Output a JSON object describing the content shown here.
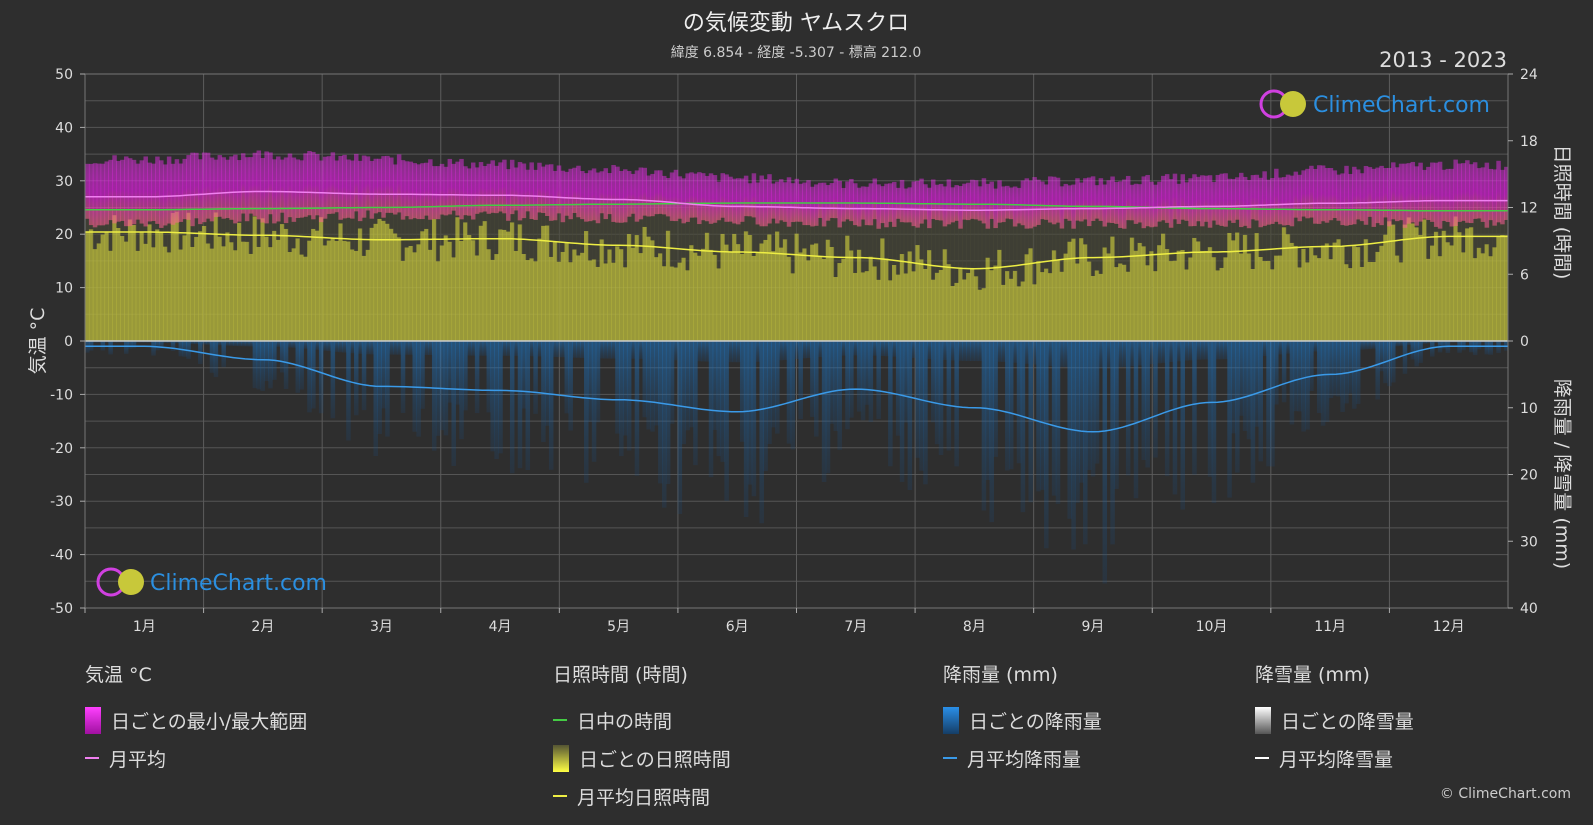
{
  "header": {
    "title": "の気候変動 ヤムスクロ",
    "subtitle": "緯度 6.854 - 経度 -5.307 - 標高 212.0",
    "period": "2013 - 2023"
  },
  "branding": {
    "logo_text": "ClimeChart.com",
    "copyright": "© ClimeChart.com"
  },
  "chart_data": {
    "type": "area",
    "x": [
      "1月",
      "2月",
      "3月",
      "4月",
      "5月",
      "6月",
      "7月",
      "8月",
      "9月",
      "10月",
      "11月",
      "12月"
    ],
    "left_axis": {
      "label": "気温 °C",
      "ylim": [
        -50,
        50
      ],
      "ticks": [
        "50",
        "40",
        "30",
        "20",
        "10",
        "0",
        "-10",
        "-20",
        "-30",
        "-40",
        "-50"
      ]
    },
    "right_axis_top": {
      "label": "日照時間 (時間)",
      "ylim": [
        0,
        24
      ],
      "ticks": [
        "24",
        "18",
        "12",
        "6",
        "0"
      ]
    },
    "right_axis_bottom": {
      "label": "降雨量 / 降雪量 (mm)",
      "ylim": [
        0,
        40
      ],
      "ticks": [
        "0",
        "10",
        "20",
        "30",
        "40"
      ]
    },
    "series": [
      {
        "name": "日ごとの最小/最大範囲",
        "kind": "band",
        "color": "#e020e0",
        "min": [
          22,
          23,
          23.5,
          23.5,
          23,
          22.5,
          22,
          22,
          22,
          22,
          22.5,
          22
        ],
        "max": [
          34,
          35,
          34,
          33,
          32,
          30.5,
          29.5,
          29.5,
          30,
          30.5,
          32,
          33
        ]
      },
      {
        "name": "月平均",
        "kind": "line",
        "color": "#f080f0",
        "values": [
          27,
          28,
          27.5,
          27.3,
          26.5,
          25.2,
          24.8,
          24.5,
          24.8,
          25.2,
          25.8,
          26.3
        ]
      },
      {
        "name": "日中の時間",
        "kind": "line",
        "color": "#44cc44",
        "values": [
          11.8,
          11.9,
          12.0,
          12.2,
          12.3,
          12.4,
          12.4,
          12.3,
          12.1,
          11.9,
          11.8,
          11.7
        ]
      },
      {
        "name": "日ごとの日照時間",
        "kind": "bars",
        "color": "#c8c83a"
      },
      {
        "name": "月平均日照時間",
        "kind": "line",
        "color": "#eeee44",
        "values": [
          9.8,
          9.5,
          9.1,
          9.2,
          8.6,
          8.0,
          7.5,
          6.5,
          7.5,
          8.0,
          8.5,
          9.4
        ]
      },
      {
        "name": "日ごとの降雨量",
        "kind": "bars",
        "color": "#1e6fb5"
      },
      {
        "name": "月平均降雨量",
        "kind": "line",
        "color": "#3a9ae8",
        "values": [
          0.8,
          2.8,
          6.8,
          7.4,
          8.8,
          10.6,
          7.2,
          10.0,
          13.6,
          9.2,
          5.0,
          0.8
        ]
      },
      {
        "name": "日ごとの降雪量",
        "kind": "bars",
        "color": "#ffffff"
      },
      {
        "name": "月平均降雪量",
        "kind": "line",
        "color": "#ffffff",
        "values": [
          0,
          0,
          0,
          0,
          0,
          0,
          0,
          0,
          0,
          0,
          0,
          0
        ]
      }
    ]
  },
  "legend": {
    "temperature": {
      "heading": "気温 °C",
      "items": [
        "日ごとの最小/最大範囲",
        "月平均"
      ]
    },
    "sunshine": {
      "heading": "日照時間 (時間)",
      "items": [
        "日中の時間",
        "日ごとの日照時間",
        "月平均日照時間"
      ]
    },
    "rain": {
      "heading": "降雨量 (mm)",
      "items": [
        "日ごとの降雨量",
        "月平均降雨量"
      ]
    },
    "snow": {
      "heading": "降雪量 (mm)",
      "items": [
        "日ごとの降雪量",
        "月平均降雪量"
      ]
    }
  },
  "colors": {
    "background": "#2e2e2e",
    "grid": "#5a5a5a",
    "text": "#dddddd",
    "logo": "#2b8fe0"
  }
}
